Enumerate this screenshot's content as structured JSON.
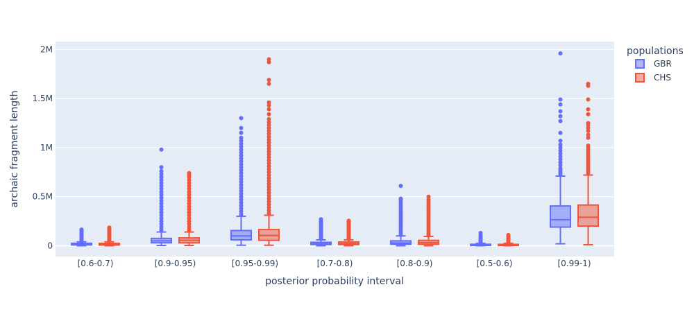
{
  "chart_data": {
    "type": "box",
    "xlabel": "posterior probability interval",
    "ylabel": "archaic fragment length",
    "ylim": [
      -110000,
      2080000
    ],
    "yticks": [
      0,
      500000,
      1000000,
      1500000,
      2000000
    ],
    "ytick_labels": [
      "0",
      "0.5M",
      "1M",
      "1.5M",
      "2M"
    ],
    "grid": true,
    "legend": {
      "title": "populations",
      "position": "top-right"
    },
    "categories": [
      "[0.6-0.7)",
      "[0.9-0.95)",
      "[0.95-0.99)",
      "[0.7-0.8)",
      "[0.8-0.9)",
      "[0.5-0.6)",
      "[0.99-1)"
    ],
    "series": [
      {
        "name": "GBR",
        "color": "#636efa",
        "boxes": [
          {
            "min": 0,
            "q1": 8000,
            "median": 15000,
            "q3": 25000,
            "max": 40000,
            "outliers": [
              45000,
              55000,
              65000,
              75000,
              85000,
              95000,
              105000,
              115000,
              125000,
              135000,
              145000,
              155000,
              165000
            ]
          },
          {
            "min": 3000,
            "q1": 30000,
            "median": 50000,
            "q3": 75000,
            "max": 140000,
            "outliers": [
              160000,
              190000,
              220000,
              250000,
              280000,
              310000,
              340000,
              370000,
              400000,
              430000,
              460000,
              490000,
              520000,
              550000,
              580000,
              610000,
              640000,
              670000,
              700000,
              730000,
              760000,
              800000,
              980000
            ]
          },
          {
            "min": 5000,
            "q1": 60000,
            "median": 100000,
            "q3": 155000,
            "max": 300000,
            "outliers": [
              320000,
              350000,
              380000,
              410000,
              440000,
              470000,
              500000,
              530000,
              560000,
              590000,
              620000,
              650000,
              680000,
              710000,
              740000,
              770000,
              800000,
              830000,
              860000,
              890000,
              920000,
              950000,
              980000,
              1010000,
              1040000,
              1070000,
              1100000,
              1150000,
              1200000,
              1300000
            ]
          },
          {
            "min": 0,
            "q1": 12000,
            "median": 20000,
            "q3": 35000,
            "max": 60000,
            "outliers": [
              70000,
              80000,
              90000,
              100000,
              110000,
              120000,
              130000,
              140000,
              150000,
              160000,
              170000,
              180000,
              190000,
              200000,
              210000,
              220000,
              230000,
              240000,
              250000,
              270000
            ]
          },
          {
            "min": 0,
            "q1": 15000,
            "median": 28000,
            "q3": 50000,
            "max": 100000,
            "outliers": [
              110000,
              130000,
              150000,
              170000,
              190000,
              210000,
              230000,
              250000,
              270000,
              290000,
              310000,
              330000,
              350000,
              370000,
              390000,
              410000,
              430000,
              450000,
              470000,
              480000,
              610000
            ]
          },
          {
            "min": 0,
            "q1": 3000,
            "median": 8000,
            "q3": 15000,
            "max": 25000,
            "outliers": [
              30000,
              40000,
              50000,
              60000,
              70000,
              80000,
              90000,
              110000,
              130000
            ]
          },
          {
            "min": 20000,
            "q1": 190000,
            "median": 265000,
            "q3": 405000,
            "max": 710000,
            "outliers": [
              730000,
              750000,
              770000,
              790000,
              820000,
              850000,
              880000,
              910000,
              940000,
              970000,
              1000000,
              1030000,
              1070000,
              1150000,
              1270000,
              1320000,
              1370000,
              1440000,
              1490000,
              1960000
            ]
          }
        ]
      },
      {
        "name": "CHS",
        "color": "#ef553b",
        "boxes": [
          {
            "min": 0,
            "q1": 7000,
            "median": 14000,
            "q3": 24000,
            "max": 40000,
            "outliers": [
              50000,
              60000,
              70000,
              80000,
              90000,
              100000,
              110000,
              120000,
              130000,
              140000,
              150000,
              160000,
              170000,
              180000,
              185000
            ]
          },
          {
            "min": 3000,
            "q1": 30000,
            "median": 55000,
            "q3": 80000,
            "max": 140000,
            "outliers": [
              160000,
              190000,
              220000,
              250000,
              280000,
              310000,
              340000,
              370000,
              400000,
              430000,
              460000,
              490000,
              520000,
              550000,
              580000,
              610000,
              640000,
              670000,
              700000,
              720000,
              740000
            ]
          },
          {
            "min": 5000,
            "q1": 55000,
            "median": 105000,
            "q3": 165000,
            "max": 310000,
            "outliers": [
              330000,
              360000,
              390000,
              420000,
              450000,
              480000,
              510000,
              540000,
              570000,
              600000,
              630000,
              660000,
              690000,
              720000,
              750000,
              780000,
              810000,
              840000,
              870000,
              900000,
              930000,
              960000,
              990000,
              1020000,
              1050000,
              1080000,
              1110000,
              1140000,
              1170000,
              1200000,
              1230000,
              1260000,
              1290000,
              1340000,
              1390000,
              1430000,
              1460000,
              1650000,
              1690000,
              1870000,
              1900000
            ]
          },
          {
            "min": 0,
            "q1": 12000,
            "median": 22000,
            "q3": 38000,
            "max": 60000,
            "outliers": [
              70000,
              80000,
              90000,
              100000,
              110000,
              120000,
              130000,
              140000,
              150000,
              160000,
              170000,
              180000,
              190000,
              200000,
              210000,
              220000,
              230000,
              240000,
              250000,
              255000
            ]
          },
          {
            "min": 0,
            "q1": 15000,
            "median": 32000,
            "q3": 55000,
            "max": 95000,
            "outliers": [
              105000,
              125000,
              145000,
              165000,
              185000,
              205000,
              225000,
              245000,
              265000,
              285000,
              305000,
              325000,
              345000,
              365000,
              385000,
              405000,
              425000,
              445000,
              470000,
              500000
            ]
          },
          {
            "min": 0,
            "q1": 3000,
            "median": 7000,
            "q3": 14000,
            "max": 25000,
            "outliers": [
              30000,
              40000,
              50000,
              60000,
              70000,
              80000,
              90000,
              100000,
              110000
            ]
          },
          {
            "min": 10000,
            "q1": 200000,
            "median": 290000,
            "q3": 415000,
            "max": 720000,
            "outliers": [
              740000,
              760000,
              780000,
              800000,
              820000,
              840000,
              860000,
              880000,
              900000,
              920000,
              940000,
              960000,
              980000,
              1000000,
              1020000,
              1100000,
              1130000,
              1170000,
              1200000,
              1230000,
              1250000,
              1340000,
              1390000,
              1490000,
              1630000,
              1650000
            ]
          }
        ]
      }
    ]
  }
}
